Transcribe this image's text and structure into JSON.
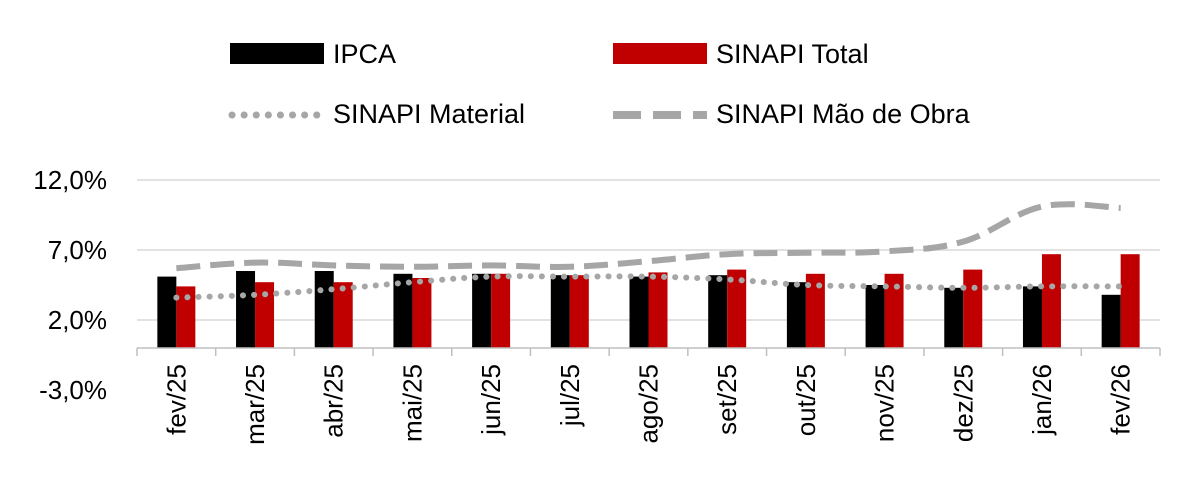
{
  "chart_data": {
    "type": "bar",
    "title": "",
    "xlabel": "",
    "ylabel": "",
    "categories": [
      "fev/25",
      "mar/25",
      "abr/25",
      "mai/25",
      "jun/25",
      "jul/25",
      "ago/25",
      "set/25",
      "out/25",
      "nov/25",
      "dez/25",
      "jan/26",
      "fev/26"
    ],
    "ylim": [
      -3.0,
      12.0
    ],
    "yticks": [
      -3.0,
      2.0,
      7.0,
      12.0
    ],
    "ytick_labels": [
      "-3,0%",
      "2,0%",
      "7,0%",
      "12,0%"
    ],
    "grid": true,
    "legend_position": "top",
    "series": [
      {
        "name": "IPCA",
        "kind": "bar",
        "color": "#000000",
        "values": [
          5.1,
          5.5,
          5.5,
          5.3,
          5.3,
          5.2,
          5.1,
          5.2,
          4.7,
          4.5,
          4.3,
          4.4,
          3.8
        ]
      },
      {
        "name": "SINAPI Total",
        "kind": "bar",
        "color": "#c00000",
        "values": [
          4.4,
          4.7,
          4.7,
          5.0,
          5.3,
          5.2,
          5.4,
          5.6,
          5.3,
          5.3,
          5.6,
          6.7,
          6.7
        ]
      },
      {
        "name": "SINAPI Material",
        "kind": "line",
        "style": "dotted",
        "color": "#a6a6a6",
        "values": [
          3.6,
          3.8,
          4.2,
          4.7,
          5.1,
          5.1,
          5.1,
          4.9,
          4.5,
          4.4,
          4.3,
          4.4,
          4.4
        ]
      },
      {
        "name": "SINAPI Mão de Obra",
        "kind": "line",
        "style": "dashed",
        "color": "#a6a6a6",
        "values": [
          5.7,
          6.1,
          5.9,
          5.8,
          5.9,
          5.8,
          6.2,
          6.7,
          6.8,
          6.9,
          7.6,
          10.1,
          10.0
        ]
      }
    ]
  }
}
